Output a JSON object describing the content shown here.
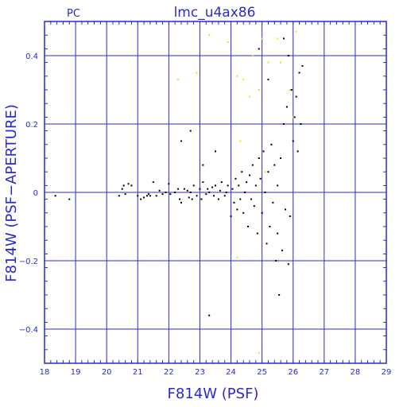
{
  "chart_data": {
    "type": "scatter",
    "title": "lmc_u4ax86",
    "corner_label": "PC",
    "xlabel": "F814W (PSF)",
    "ylabel": "F814W (PSF−APERTURE)",
    "xlim": [
      18,
      29
    ],
    "ylim": [
      -0.5,
      0.5
    ],
    "x_ticks": [
      "18",
      "19",
      "20",
      "21",
      "22",
      "23",
      "24",
      "25",
      "26",
      "27",
      "28",
      "29"
    ],
    "y_ticks": [
      "0.4",
      "0.2",
      "0",
      "−0.2",
      "−0.4"
    ],
    "grid": true,
    "colors": {
      "axis": "#2a2ad0",
      "primary": "#000000",
      "secondary": "#f0e000"
    },
    "series": [
      {
        "color": "#000000",
        "points": [
          [
            18.35,
            -0.01
          ],
          [
            18.8,
            -0.02
          ],
          [
            20.4,
            -0.01
          ],
          [
            20.5,
            0.01
          ],
          [
            20.55,
            0.02
          ],
          [
            20.6,
            -0.005
          ],
          [
            20.7,
            0.025
          ],
          [
            20.8,
            0.02
          ],
          [
            21.0,
            -0.01
          ],
          [
            21.1,
            -0.02
          ],
          [
            21.2,
            -0.015
          ],
          [
            21.3,
            -0.01
          ],
          [
            21.35,
            -0.005
          ],
          [
            21.4,
            -0.01
          ],
          [
            21.5,
            0.03
          ],
          [
            21.6,
            -0.01
          ],
          [
            21.7,
            0.005
          ],
          [
            21.8,
            -0.005
          ],
          [
            21.9,
            0.0
          ],
          [
            22.0,
            0.025
          ],
          [
            22.05,
            -0.005
          ],
          [
            22.2,
            0.0
          ],
          [
            22.3,
            0.01
          ],
          [
            22.35,
            -0.02
          ],
          [
            22.4,
            -0.03
          ],
          [
            22.5,
            0.01
          ],
          [
            22.6,
            0.005
          ],
          [
            22.65,
            -0.015
          ],
          [
            22.7,
            0.0
          ],
          [
            22.75,
            -0.02
          ],
          [
            22.8,
            0.02
          ],
          [
            22.9,
            -0.01
          ],
          [
            23.0,
            0.01
          ],
          [
            23.05,
            -0.02
          ],
          [
            23.1,
            0.03
          ],
          [
            23.2,
            -0.005
          ],
          [
            23.25,
            0.01
          ],
          [
            23.3,
            0.0
          ],
          [
            23.4,
            0.015
          ],
          [
            23.45,
            -0.01
          ],
          [
            23.5,
            0.02
          ],
          [
            23.6,
            -0.02
          ],
          [
            23.65,
            0.005
          ],
          [
            23.7,
            0.03
          ],
          [
            23.8,
            -0.01
          ],
          [
            23.85,
            0.0
          ],
          [
            23.9,
            0.02
          ],
          [
            24.0,
            -0.07
          ],
          [
            24.05,
            0.01
          ],
          [
            24.1,
            -0.03
          ],
          [
            24.15,
            0.04
          ],
          [
            24.2,
            -0.05
          ],
          [
            24.25,
            0.02
          ],
          [
            24.3,
            -0.02
          ],
          [
            24.35,
            0.06
          ],
          [
            24.4,
            -0.06
          ],
          [
            24.45,
            0.0
          ],
          [
            24.5,
            0.03
          ],
          [
            24.55,
            -0.1
          ],
          [
            24.6,
            0.05
          ],
          [
            24.65,
            -0.02
          ],
          [
            24.7,
            0.08
          ],
          [
            24.75,
            -0.04
          ],
          [
            24.8,
            0.02
          ],
          [
            24.85,
            -0.12
          ],
          [
            24.9,
            0.1
          ],
          [
            24.95,
            0.04
          ],
          [
            25.0,
            -0.06
          ],
          [
            25.05,
            0.12
          ],
          [
            25.1,
            0.0
          ],
          [
            25.15,
            -0.15
          ],
          [
            25.2,
            0.06
          ],
          [
            25.25,
            -0.1
          ],
          [
            25.3,
            0.14
          ],
          [
            25.35,
            -0.03
          ],
          [
            25.4,
            0.08
          ],
          [
            25.45,
            -0.2
          ],
          [
            25.5,
            0.02
          ],
          [
            25.55,
            -0.3
          ],
          [
            25.6,
            0.1
          ],
          [
            25.65,
            -0.17
          ],
          [
            25.7,
            0.2
          ],
          [
            25.75,
            -0.05
          ],
          [
            25.8,
            0.25
          ],
          [
            25.85,
            0.4
          ],
          [
            25.9,
            -0.07
          ],
          [
            25.95,
            0.3
          ],
          [
            26.0,
            0.15
          ],
          [
            26.05,
            0.22
          ],
          [
            26.1,
            0.28
          ],
          [
            26.15,
            0.12
          ],
          [
            26.2,
            0.35
          ],
          [
            26.25,
            0.2
          ],
          [
            26.3,
            0.37
          ],
          [
            23.3,
            -0.36
          ],
          [
            22.4,
            0.15
          ],
          [
            22.7,
            0.18
          ],
          [
            23.1,
            0.08
          ],
          [
            23.5,
            0.12
          ],
          [
            24.9,
            0.42
          ],
          [
            25.2,
            0.33
          ],
          [
            25.7,
            0.45
          ],
          [
            25.85,
            -0.21
          ],
          [
            25.5,
            -0.12
          ]
        ]
      },
      {
        "color": "#f0e000",
        "points": [
          [
            22.3,
            0.33
          ],
          [
            22.9,
            0.35
          ],
          [
            23.3,
            0.46
          ],
          [
            23.9,
            0.44
          ],
          [
            24.2,
            0.34
          ],
          [
            24.4,
            0.33
          ],
          [
            24.6,
            0.28
          ],
          [
            24.7,
            0.4
          ],
          [
            24.9,
            0.3
          ],
          [
            25.0,
            0.45
          ],
          [
            25.2,
            0.38
          ],
          [
            25.5,
            0.45
          ],
          [
            25.6,
            0.38
          ],
          [
            25.9,
            0.3
          ],
          [
            26.0,
            0.22
          ],
          [
            26.1,
            0.47
          ],
          [
            24.9,
            -0.47
          ],
          [
            24.2,
            -0.19
          ],
          [
            24.3,
            0.15
          ],
          [
            25.1,
            0.06
          ]
        ]
      }
    ]
  }
}
